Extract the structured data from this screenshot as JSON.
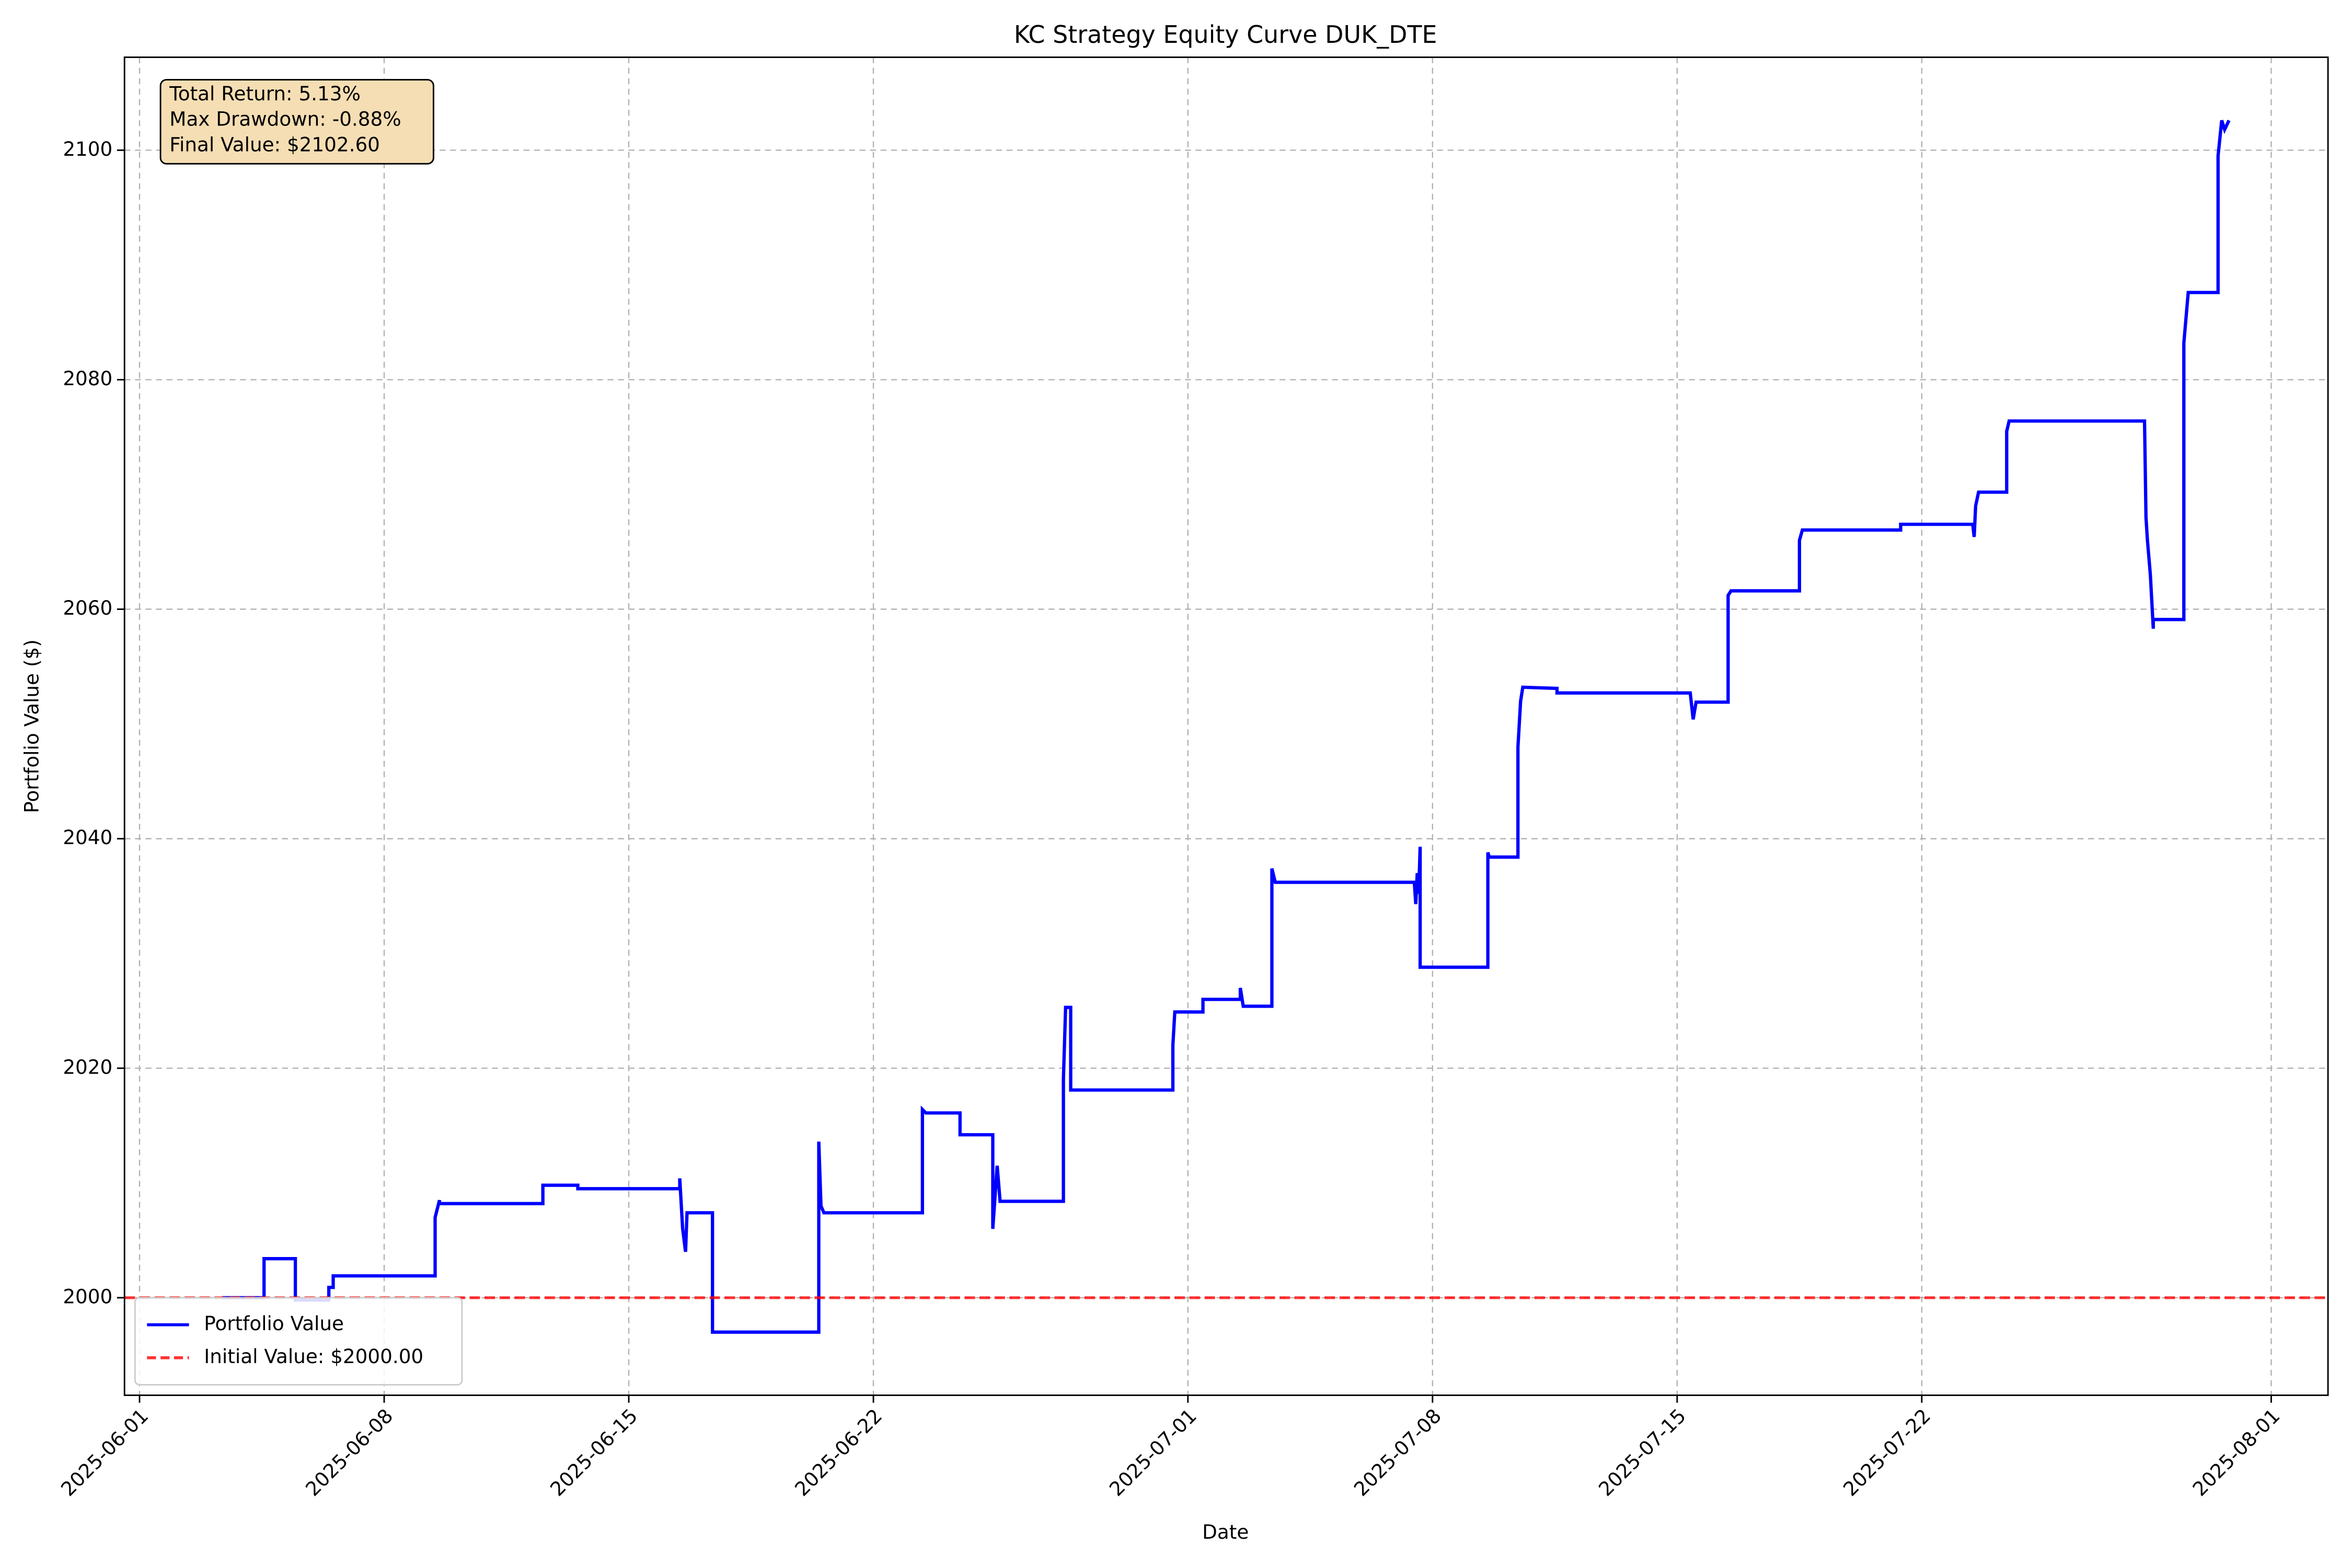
{
  "chart_data": {
    "type": "line",
    "title": "KC Strategy Equity Curve DUK_DTE",
    "x_label": "Date",
    "y_label": "Portfolio Value ($)",
    "annotations": [
      "Total Return: 5.13%",
      "Max Drawdown: -0.88%",
      "Final Value: $2102.60"
    ],
    "x": [
      "2025-06-03 08:40",
      "2025-06-04 13:30",
      "2025-06-04 13:30",
      "2025-06-05 11:00",
      "2025-06-05 11:00",
      "2025-06-06 10:00",
      "2025-06-06 10:00",
      "2025-06-06 13:00",
      "2025-06-06 13:00",
      "2025-06-09 11:00",
      "2025-06-09 11:00",
      "2025-06-09 14:00",
      "2025-06-09 14:00",
      "2025-06-12 13:00",
      "2025-06-12 13:00",
      "2025-06-13 13:00",
      "2025-06-13 13:00",
      "2025-06-16 11:00",
      "2025-06-16 11:00",
      "2025-06-16 13:00",
      "2025-06-16 15:00",
      "2025-06-16 16:00",
      "2025-06-17 09:30",
      "2025-06-17 09:30",
      "2025-06-20 10:30",
      "2025-06-20 10:30",
      "2025-06-20 12:00",
      "2025-06-20 14:00",
      "2025-06-23 09:40",
      "2025-06-23 09:40",
      "2025-06-23 12:00",
      "2025-06-24 11:30",
      "2025-06-24 11:30",
      "2025-06-25 10:00",
      "2025-06-25 10:00",
      "2025-06-25 13:00",
      "2025-06-25 15:00",
      "2025-06-27 10:30",
      "2025-06-27 10:30",
      "2025-06-27 12:00",
      "2025-06-27 15:30",
      "2025-06-27 15:30",
      "2025-06-30 13:40",
      "2025-06-30 13:40",
      "2025-06-30 15:00",
      "2025-07-01 10:20",
      "2025-07-01 10:20",
      "2025-07-02 12:00",
      "2025-07-02 12:00",
      "2025-07-02 14:00",
      "2025-07-03 09:40",
      "2025-07-03 09:40",
      "2025-07-03 12:00",
      "2025-07-07 11:30",
      "2025-07-07 12:30",
      "2025-07-07 13:30",
      "2025-07-07 14:30",
      "2025-07-07 15:30",
      "2025-07-07 15:30",
      "2025-07-09 14:00",
      "2025-07-09 14:00",
      "2025-07-09 15:00",
      "2025-07-10 10:40",
      "2025-07-10 10:40",
      "2025-07-10 12:30",
      "2025-07-10 14:00",
      "2025-07-11 13:30",
      "2025-07-11 13:30",
      "2025-07-15 09:00",
      "2025-07-15 11:00",
      "2025-07-15 13:00",
      "2025-07-16 11:00",
      "2025-07-16 11:00",
      "2025-07-16 13:00",
      "2025-07-18 12:00",
      "2025-07-18 12:00",
      "2025-07-18 14:00",
      "2025-07-21 09:30",
      "2025-07-21 09:30",
      "2025-07-23 11:00",
      "2025-07-23 12:00",
      "2025-07-23 13:00",
      "2025-07-23 15:00",
      "2025-07-24 10:20",
      "2025-07-24 10:20",
      "2025-07-24 12:00",
      "2025-07-28 09:00",
      "2025-07-28 10:00",
      "2025-07-28 11:00",
      "2025-07-28 13:00",
      "2025-07-28 15:00",
      "2025-07-28 15:00",
      "2025-07-29 12:00",
      "2025-07-29 12:00",
      "2025-07-29 15:00",
      "2025-07-30 11:30",
      "2025-07-30 11:30",
      "2025-07-30 14:00",
      "2025-07-30 16:00",
      "2025-07-30 19:00"
    ],
    "series": [
      {
        "name": "Portfolio Value",
        "color": "#0000ff",
        "values": [
          2000,
          2000,
          2003.4,
          2003.4,
          1999.8,
          1999.8,
          2000.9,
          2000.9,
          2001.9,
          2001.9,
          2007.0,
          2008.5,
          2008.2,
          2008.2,
          2009.8,
          2009.8,
          2009.5,
          2009.5,
          2010.4,
          2006.0,
          2004.0,
          2007.4,
          2007.4,
          1997.0,
          1997.0,
          2013.6,
          2008.0,
          2007.4,
          2007.4,
          2016.4,
          2016.1,
          2016.1,
          2014.2,
          2014.2,
          2006.0,
          2011.5,
          2008.4,
          2008.4,
          2019.0,
          2025.3,
          2025.3,
          2018.1,
          2018.1,
          2022.0,
          2024.9,
          2024.9,
          2026.0,
          2026.0,
          2027.0,
          2025.4,
          2025.4,
          2037.4,
          2036.2,
          2036.2,
          2034.3,
          2037.0,
          2035.2,
          2039.3,
          2028.8,
          2028.8,
          2038.8,
          2038.4,
          2038.4,
          2048.0,
          2052.0,
          2053.2,
          2053.1,
          2052.7,
          2052.7,
          2050.4,
          2051.9,
          2051.9,
          2061.2,
          2061.6,
          2061.6,
          2066.0,
          2066.9,
          2066.9,
          2067.4,
          2067.4,
          2066.3,
          2069.0,
          2070.2,
          2070.2,
          2075.5,
          2076.4,
          2076.4,
          2068.0,
          2066.0,
          2063.0,
          2058.3,
          2059.1,
          2059.1,
          2083.2,
          2087.6,
          2087.6,
          2099.5,
          2102.6,
          2101.8,
          2102.6
        ]
      }
    ],
    "hline": {
      "name": "Initial Value: $2000.00",
      "value": 2000,
      "color": "#ff0000"
    },
    "xlim": [
      "2025-05-31 13:40",
      "2025-08-02 15:00"
    ],
    "xticks": [
      "2025-06-01",
      "2025-06-08",
      "2025-06-15",
      "2025-06-22",
      "2025-07-01",
      "2025-07-08",
      "2025-07-15",
      "2025-07-22",
      "2025-08-01"
    ],
    "ylim": [
      1991.5,
      2108.1
    ],
    "yticks": [
      2000,
      2020,
      2040,
      2060,
      2080,
      2100
    ],
    "grid": true,
    "legend": "lower left"
  }
}
